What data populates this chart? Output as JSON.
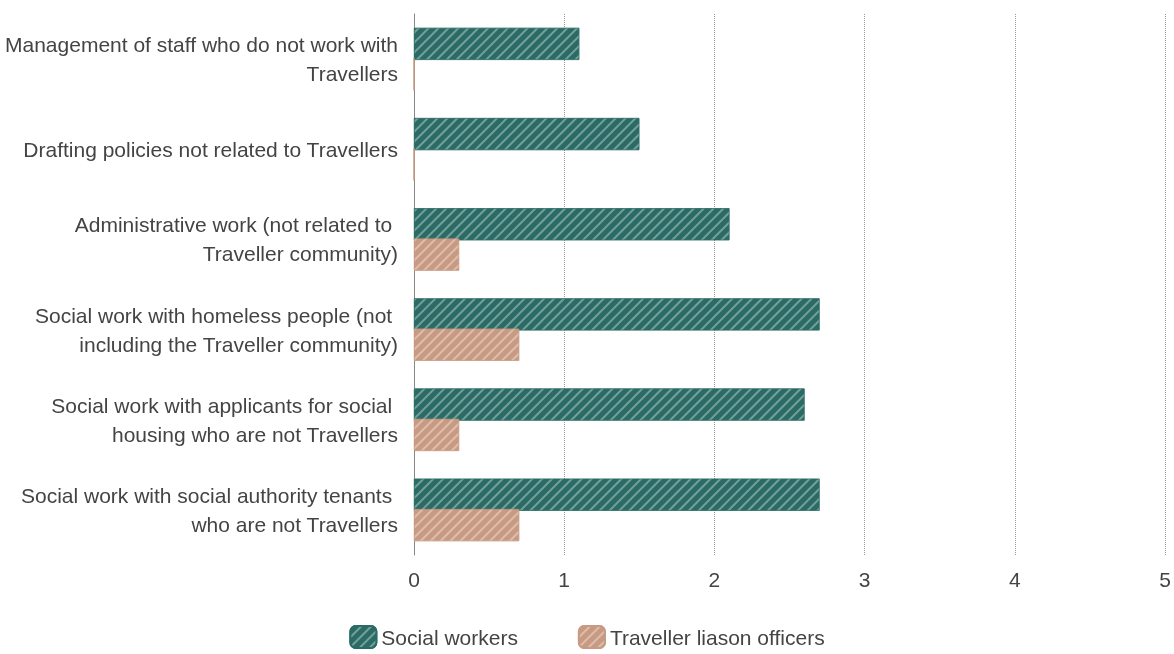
{
  "chart_data": {
    "type": "bar",
    "orientation": "horizontal",
    "categories": [
      "Management of staff who do not work with Travellers",
      "Drafting policies not related to Travellers",
      "Administrative work (not related to Traveller community)",
      "Social work with homeless people (not including the Traveller community)",
      "Social work with applicants for social housing who are not Travellers",
      "Social work with social authority tenants who are not Travellers"
    ],
    "series": [
      {
        "name": "Social workers",
        "color": "#2b6b65",
        "values": [
          1.1,
          1.5,
          2.1,
          2.7,
          2.6,
          2.7
        ]
      },
      {
        "name": "Traveller liason officers",
        "color": "#c99a82",
        "values": [
          0,
          0,
          0.3,
          0.7,
          0.3,
          0.7
        ]
      }
    ],
    "xlim": [
      0,
      5
    ],
    "xticks": [
      0,
      1,
      2,
      3,
      4,
      5
    ],
    "grid": "x",
    "legend": "bottom"
  }
}
